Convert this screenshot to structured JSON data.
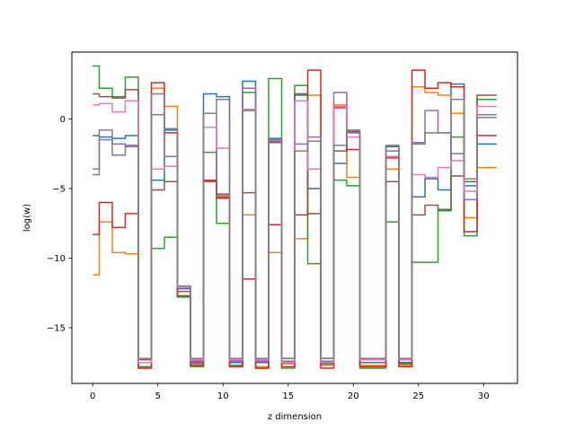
{
  "chart_data": {
    "type": "line",
    "drawstyle": "steps-mid",
    "title": "",
    "xlabel": "z dimension",
    "ylabel": "log(w)",
    "xlim": [
      -1.6,
      32.6
    ],
    "ylim": [
      -19.0,
      4.8
    ],
    "xticks": [
      0,
      5,
      10,
      15,
      20,
      25,
      30
    ],
    "yticks": [
      -15,
      -10,
      -5,
      0
    ],
    "grid": false,
    "legend": "none",
    "series": [
      {
        "color": "#1f77b4",
        "values": [
          -1.2,
          -1.3,
          -1.4,
          -1.2,
          -17.5,
          -4.4,
          -0.8,
          -12.2,
          -17.5,
          1.8,
          1.6,
          -17.5,
          2.7,
          -17.5,
          -1.4,
          -17.5,
          1.7,
          -5.0,
          -17.5,
          -3.2,
          -1.0,
          -17.5,
          -17.5,
          -2.0,
          -17.5,
          -5.6,
          -4.3,
          -5.1,
          2.5,
          -4.8,
          -1.8,
          -1.8
        ]
      },
      {
        "color": "#ff7f0e",
        "values": [
          -11.2,
          -7.4,
          -9.6,
          -9.7,
          -17.9,
          2.2,
          0.9,
          -12.8,
          -17.6,
          -0.6,
          -5.5,
          -17.8,
          -6.9,
          -17.8,
          -9.6,
          -17.6,
          -8.6,
          1.7,
          -17.7,
          1.0,
          -4.2,
          -17.7,
          -17.7,
          -3.6,
          -17.7,
          2.3,
          1.9,
          1.7,
          0.4,
          -7.1,
          -3.5,
          -3.5
        ]
      },
      {
        "color": "#2ca02c",
        "values": [
          3.8,
          2.2,
          1.6,
          3.0,
          -17.8,
          -9.3,
          -8.5,
          -12.8,
          -17.8,
          -2.4,
          -7.5,
          -17.7,
          1.9,
          -17.9,
          2.9,
          -17.9,
          2.4,
          -10.4,
          -17.6,
          -4.4,
          -4.8,
          -17.9,
          -17.9,
          -7.4,
          -17.6,
          -10.3,
          -10.3,
          -6.6,
          -1.3,
          -8.4,
          1.4,
          1.4
        ]
      },
      {
        "color": "#d62728",
        "values": [
          -8.3,
          -6.0,
          -7.8,
          -6.8,
          -17.9,
          2.6,
          -1.0,
          -12.7,
          -17.7,
          -4.4,
          -5.7,
          -17.8,
          -11.5,
          -17.9,
          -7.6,
          -17.8,
          -6.9,
          3.5,
          -17.9,
          0.8,
          -2.2,
          -17.8,
          -17.8,
          -2.8,
          -17.8,
          3.5,
          2.2,
          2.6,
          2.3,
          -8.1,
          -1.2,
          -1.2
        ]
      },
      {
        "color": "#9467bd",
        "values": [
          -3.6,
          -1.5,
          -1.8,
          -2.0,
          -17.5,
          1.8,
          -2.7,
          -12.1,
          -17.4,
          0.4,
          -5.6,
          -17.4,
          2.2,
          -17.4,
          -1.5,
          -17.4,
          -1.8,
          -1.3,
          -17.4,
          1.9,
          -1.0,
          -17.3,
          -17.3,
          -2.3,
          -17.3,
          -1.7,
          0.6,
          -1.0,
          -2.5,
          -5.8,
          0.3,
          0.3
        ]
      },
      {
        "color": "#8c564b",
        "values": [
          1.8,
          1.6,
          1.5,
          2.1,
          -17.3,
          -5.1,
          -4.5,
          -12.4,
          -17.3,
          -4.5,
          -5.4,
          -17.3,
          -5.3,
          -17.3,
          -1.7,
          -17.2,
          1.8,
          -6.8,
          -17.2,
          -2.3,
          -0.9,
          -17.3,
          -17.3,
          -4.5,
          -17.3,
          -6.9,
          -6.2,
          -6.5,
          -4.1,
          -4.5,
          1.7,
          1.7
        ]
      },
      {
        "color": "#e377c2",
        "values": [
          1.0,
          1.1,
          0.5,
          1.3,
          -17.5,
          -3.6,
          -3.4,
          -12.1,
          -17.3,
          -0.6,
          -2.1,
          -17.3,
          0.7,
          -17.3,
          -1.6,
          -17.5,
          1.3,
          -3.6,
          -17.5,
          0.9,
          -1.3,
          -17.3,
          -17.3,
          -2.7,
          -17.3,
          -4.0,
          -4.2,
          -3.5,
          -3.0,
          -5.2,
          0.9,
          0.9
        ]
      },
      {
        "color": "#7f7f7f",
        "values": [
          -4.0,
          -0.8,
          -2.6,
          -1.9,
          -17.2,
          0.3,
          -0.7,
          -12.0,
          -17.2,
          0.4,
          1.4,
          -17.2,
          0.6,
          -17.2,
          -1.6,
          -17.2,
          -2.3,
          -1.6,
          -17.2,
          -1.9,
          -0.8,
          -17.2,
          -17.2,
          -1.9,
          -17.2,
          -1.8,
          -1.0,
          -1.0,
          1.4,
          -4.3,
          0.1,
          0.1
        ]
      }
    ]
  }
}
